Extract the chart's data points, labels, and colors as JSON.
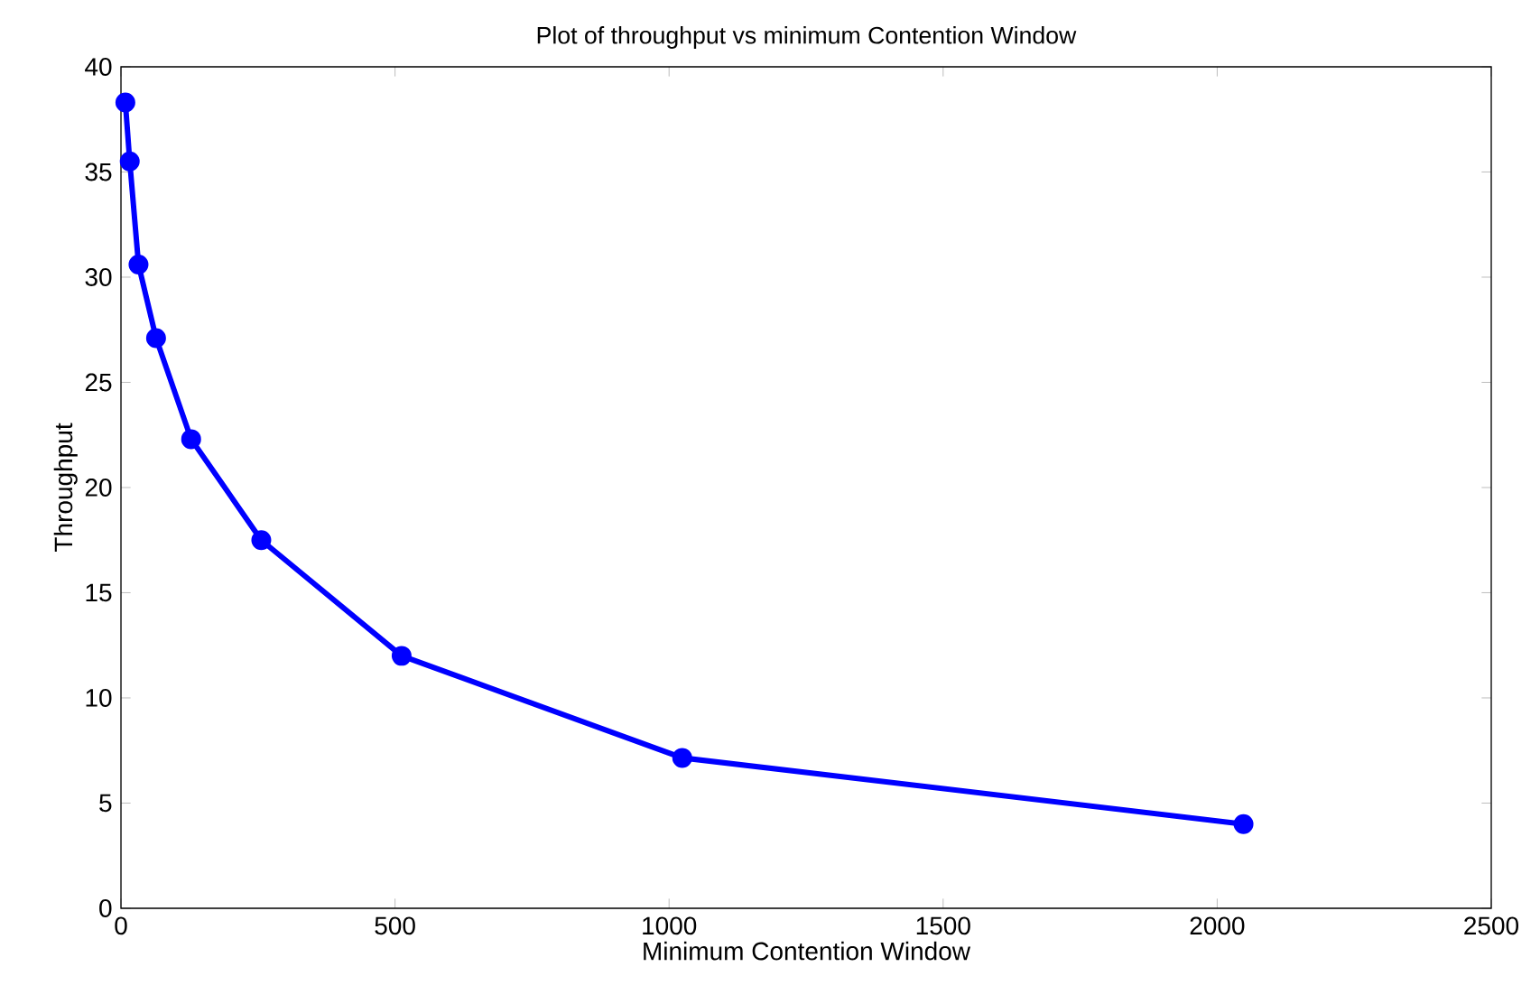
{
  "chart_data": {
    "type": "line",
    "title": "Plot of throughput vs minimum Contention Window",
    "xlabel": "Minimum Contention Window",
    "ylabel": "Throughput",
    "x": [
      8,
      16,
      32,
      64,
      128,
      256,
      512,
      1024,
      2048
    ],
    "series": [
      {
        "color": "#0000ff",
        "values": [
          38.3,
          35.5,
          30.6,
          27.1,
          22.3,
          17.5,
          12.0,
          7.15,
          4.0
        ]
      }
    ],
    "xlim": [
      0,
      2500
    ],
    "ylim": [
      0,
      40
    ],
    "xticks": [
      0,
      500,
      1000,
      1500,
      2000,
      2500
    ],
    "yticks": [
      0,
      5,
      10,
      15,
      20,
      25,
      30,
      35,
      40
    ],
    "marker": "circle",
    "line_style": "solid"
  }
}
